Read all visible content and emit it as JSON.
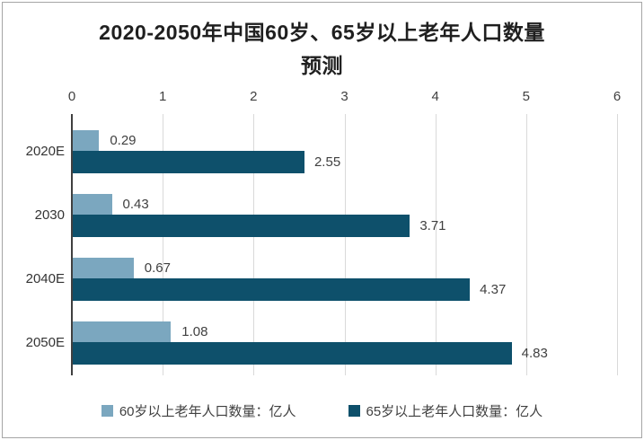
{
  "chart_data": {
    "type": "bar",
    "orientation": "horizontal",
    "title": "2020-2050年中国60岁、65岁以上老年人口数量预测",
    "title_lines": [
      "2020-2050年中国60岁、65岁以上老年人口数量",
      "预测"
    ],
    "categories": [
      "2020E",
      "2030",
      "2040E",
      "2050E"
    ],
    "series": [
      {
        "name": "60岁以上老年人口数量：亿人",
        "color": "#7BA7BF",
        "values": [
          0.29,
          0.43,
          0.67,
          1.08
        ]
      },
      {
        "name": "65岁以上老年人口数量：亿人",
        "color": "#0E506B",
        "values": [
          2.55,
          3.71,
          4.37,
          4.83
        ]
      }
    ],
    "xticks": [
      0,
      1,
      2,
      3,
      4,
      5,
      6
    ],
    "xlim": [
      0,
      6
    ],
    "grid": "vertical",
    "legend_position": "bottom",
    "value_labels": true
  },
  "colors": {
    "series_60_plus": "#7BA7BF",
    "series_65_plus": "#0E506B",
    "gridline": "#D9D9D9",
    "axis_line": "#404040",
    "label_text": "#404040",
    "title_text": "#1F1F1F",
    "frame_border": "#A6A6A6"
  }
}
